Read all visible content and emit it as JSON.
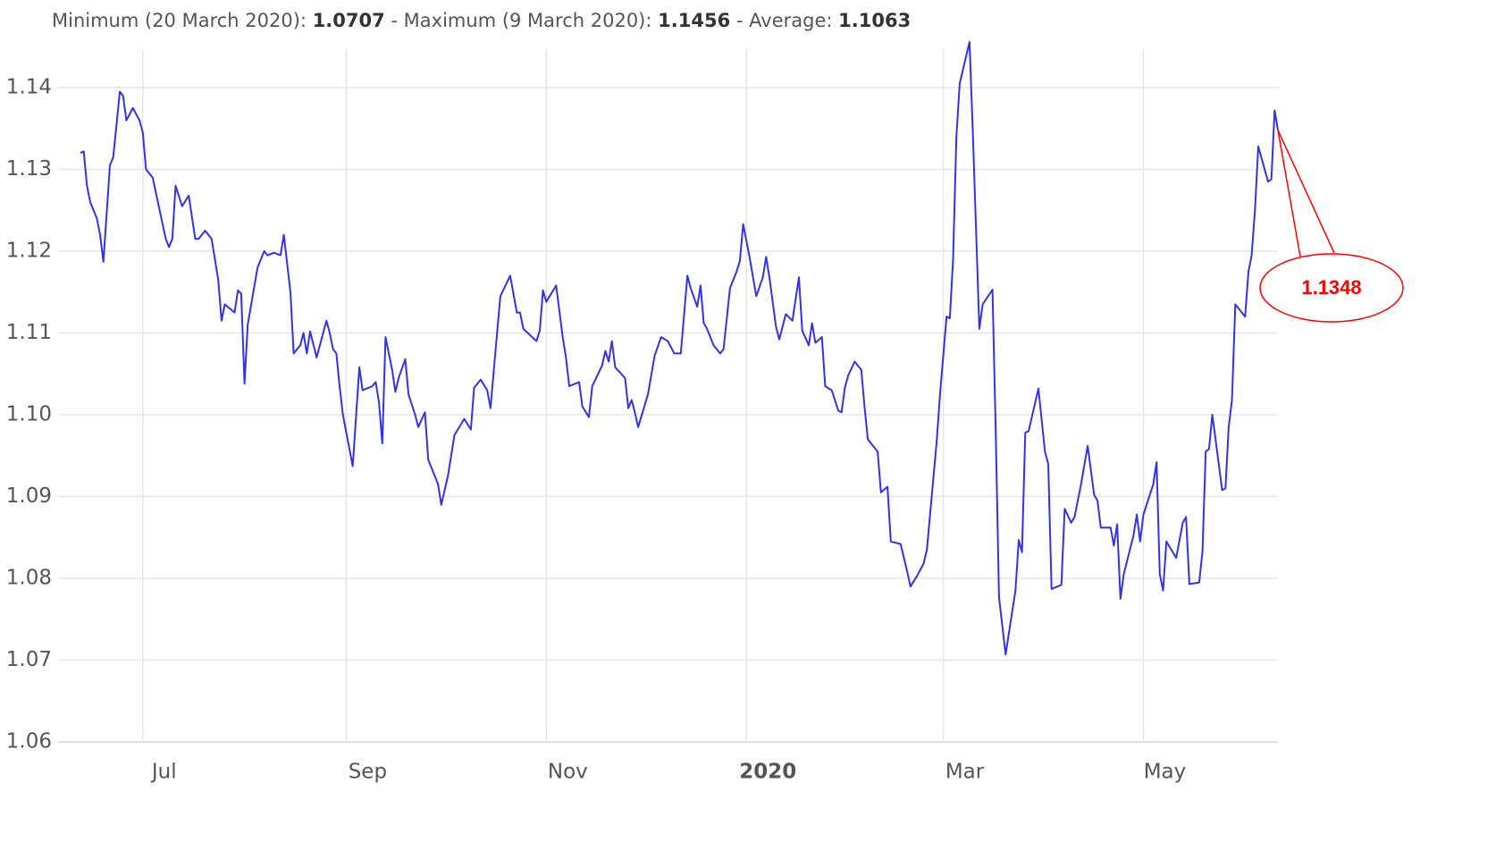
{
  "chart_data": {
    "type": "line",
    "summary": {
      "minimum_label": "Minimum (20 March 2020):",
      "minimum": 1.0707,
      "maximum_label": "- Maximum (9 March 2020):",
      "maximum": 1.1456,
      "average_label": "- Average:",
      "average": 1.1063
    },
    "annotation": {
      "value": 1.1348,
      "color": "#ff0000"
    },
    "x": [
      "2019-06-12",
      "2019-06-13",
      "2019-06-14",
      "2019-06-15",
      "2019-06-17",
      "2019-06-18",
      "2019-06-19",
      "2019-06-21",
      "2019-06-22",
      "2019-06-24",
      "2019-06-25",
      "2019-06-26",
      "2019-06-28",
      "2019-06-30",
      "2019-07-01",
      "2019-07-02",
      "2019-07-04",
      "2019-07-08",
      "2019-07-09",
      "2019-07-10",
      "2019-07-11",
      "2019-07-13",
      "2019-07-15",
      "2019-07-17",
      "2019-07-18",
      "2019-07-20",
      "2019-07-22",
      "2019-07-24",
      "2019-07-25",
      "2019-07-26",
      "2019-07-29",
      "2019-07-30",
      "2019-07-31",
      "2019-08-01",
      "2019-08-02",
      "2019-08-05",
      "2019-08-07",
      "2019-08-08",
      "2019-08-10",
      "2019-08-12",
      "2019-08-13",
      "2019-08-15",
      "2019-08-16",
      "2019-08-18",
      "2019-08-19",
      "2019-08-20",
      "2019-08-21",
      "2019-08-23",
      "2019-08-26",
      "2019-08-27",
      "2019-08-28",
      "2019-08-29",
      "2019-08-30",
      "2019-08-31",
      "2019-09-03",
      "2019-09-05",
      "2019-09-06",
      "2019-09-09",
      "2019-09-10",
      "2019-09-11",
      "2019-09-12",
      "2019-09-13",
      "2019-09-15",
      "2019-09-16",
      "2019-09-17",
      "2019-09-19",
      "2019-09-20",
      "2019-09-22",
      "2019-09-23",
      "2019-09-25",
      "2019-09-26",
      "2019-09-29",
      "2019-09-30",
      "2019-10-02",
      "2019-10-04",
      "2019-10-07",
      "2019-10-09",
      "2019-10-10",
      "2019-10-12",
      "2019-10-14",
      "2019-10-15",
      "2019-10-16",
      "2019-10-18",
      "2019-10-21",
      "2019-10-23",
      "2019-10-24",
      "2019-10-25",
      "2019-10-29",
      "2019-10-30",
      "2019-10-31",
      "2019-11-01",
      "2019-11-04",
      "2019-11-06",
      "2019-11-07",
      "2019-11-08",
      "2019-11-11",
      "2019-11-12",
      "2019-11-14",
      "2019-11-15",
      "2019-11-18",
      "2019-11-19",
      "2019-11-20",
      "2019-11-21",
      "2019-11-22",
      "2019-11-25",
      "2019-11-26",
      "2019-11-27",
      "2019-11-28",
      "2019-11-29",
      "2019-12-02",
      "2019-12-04",
      "2019-12-06",
      "2019-12-08",
      "2019-12-10",
      "2019-12-12",
      "2019-12-14",
      "2019-12-15",
      "2019-12-17",
      "2019-12-18",
      "2019-12-19",
      "2019-12-20",
      "2019-12-22",
      "2019-12-24",
      "2019-12-25",
      "2019-12-27",
      "2019-12-29",
      "2019-12-30",
      "2019-12-31",
      "2020-01-02",
      "2020-01-04",
      "2020-01-06",
      "2020-01-07",
      "2020-01-08",
      "2020-01-10",
      "2020-01-11",
      "2020-01-13",
      "2020-01-15",
      "2020-01-17",
      "2020-01-18",
      "2020-01-20",
      "2020-01-21",
      "2020-01-22",
      "2020-01-24",
      "2020-01-25",
      "2020-01-27",
      "2020-01-29",
      "2020-01-30",
      "2020-01-31",
      "2020-02-01",
      "2020-02-03",
      "2020-02-05",
      "2020-02-06",
      "2020-02-07",
      "2020-02-10",
      "2020-02-11",
      "2020-02-13",
      "2020-02-14",
      "2020-02-17",
      "2020-02-19",
      "2020-02-20",
      "2020-02-22",
      "2020-02-24",
      "2020-02-25",
      "2020-02-28",
      "2020-02-29",
      "2020-03-02",
      "2020-03-03",
      "2020-03-04",
      "2020-03-05",
      "2020-03-06",
      "2020-03-09",
      "2020-03-10",
      "2020-03-12",
      "2020-03-13",
      "2020-03-16",
      "2020-03-17",
      "2020-03-18",
      "2020-03-20",
      "2020-03-23",
      "2020-03-24",
      "2020-03-25",
      "2020-03-26",
      "2020-03-27",
      "2020-03-30",
      "2020-04-01",
      "2020-04-02",
      "2020-04-03",
      "2020-04-06",
      "2020-04-07",
      "2020-04-09",
      "2020-04-10",
      "2020-04-12",
      "2020-04-14",
      "2020-04-16",
      "2020-04-17",
      "2020-04-18",
      "2020-04-21",
      "2020-04-22",
      "2020-04-23",
      "2020-04-24",
      "2020-04-25",
      "2020-04-28",
      "2020-04-29",
      "2020-04-30",
      "2020-05-01",
      "2020-05-04",
      "2020-05-05",
      "2020-05-06",
      "2020-05-07",
      "2020-05-08",
      "2020-05-11",
      "2020-05-13",
      "2020-05-14",
      "2020-05-15",
      "2020-05-18",
      "2020-05-19",
      "2020-05-20",
      "2020-05-21",
      "2020-05-22",
      "2020-05-25",
      "2020-05-26",
      "2020-05-27",
      "2020-05-28",
      "2020-05-29",
      "2020-06-01",
      "2020-06-02",
      "2020-06-03",
      "2020-06-04",
      "2020-06-05",
      "2020-06-08",
      "2020-06-09",
      "2020-06-10",
      "2020-06-11"
    ],
    "series": [
      {
        "name": "EUR/USD",
        "color": "#3333e6",
        "values": [
          1.132,
          1.1322,
          1.128,
          1.126,
          1.124,
          1.122,
          1.1187,
          1.1305,
          1.1315,
          1.1395,
          1.139,
          1.136,
          1.1375,
          1.136,
          1.1345,
          1.13,
          1.129,
          1.1215,
          1.1205,
          1.1215,
          1.128,
          1.1255,
          1.1268,
          1.1215,
          1.1215,
          1.1225,
          1.1215,
          1.1165,
          1.1115,
          1.1135,
          1.1125,
          1.1152,
          1.1148,
          1.1038,
          1.111,
          1.118,
          1.12,
          1.1195,
          1.1198,
          1.1195,
          1.122,
          1.115,
          1.1075,
          1.1085,
          1.11,
          1.1075,
          1.1102,
          1.107,
          1.1115,
          1.11,
          1.108,
          1.1075,
          1.1035,
          1.1,
          1.0937,
          1.1058,
          1.103,
          1.1035,
          1.104,
          1.1015,
          1.0965,
          1.1095,
          1.1055,
          1.1028,
          1.1045,
          1.1068,
          1.1025,
          1.1,
          1.0985,
          1.1003,
          1.0945,
          1.0915,
          1.089,
          1.0925,
          1.0975,
          1.0995,
          1.0982,
          1.1033,
          1.1043,
          1.103,
          1.1008,
          1.1055,
          1.1145,
          1.117,
          1.1125,
          1.1125,
          1.1105,
          1.109,
          1.1103,
          1.1152,
          1.1138,
          1.1158,
          1.1095,
          1.107,
          1.1035,
          1.104,
          1.101,
          1.0997,
          1.1035,
          1.106,
          1.1078,
          1.1065,
          1.109,
          1.1058,
          1.1045,
          1.1008,
          1.1018,
          1.1003,
          1.0985,
          1.1025,
          1.1072,
          1.1095,
          1.109,
          1.1075,
          1.1075,
          1.117,
          1.1155,
          1.1132,
          1.1158,
          1.1112,
          1.1105,
          1.1085,
          1.1075,
          1.108,
          1.1155,
          1.1175,
          1.1188,
          1.1233,
          1.1192,
          1.1145,
          1.1168,
          1.1193,
          1.1168,
          1.1108,
          1.1092,
          1.1123,
          1.1115,
          1.1168,
          1.1103,
          1.1085,
          1.1112,
          1.1088,
          1.1095,
          1.1035,
          1.103,
          1.1005,
          1.1003,
          1.1033,
          1.1048,
          1.1065,
          1.1055,
          1.101,
          1.097,
          1.0955,
          1.0905,
          1.0912,
          1.0845,
          1.0842,
          1.0808,
          1.079,
          1.0803,
          1.0818,
          1.0835,
          1.0968,
          1.1025,
          1.112,
          1.1118,
          1.119,
          1.134,
          1.1405,
          1.1456,
          1.1345,
          1.1105,
          1.1135,
          1.1153,
          1.0975,
          1.0777,
          1.0707,
          1.0785,
          1.0847,
          1.0832,
          1.0978,
          1.098,
          1.1032,
          1.0955,
          1.094,
          1.0787,
          1.0792,
          1.0885,
          1.0868,
          1.0875,
          1.0915,
          1.0962,
          1.0902,
          1.0895,
          1.0862,
          1.0862,
          1.084,
          1.0866,
          1.0775,
          1.0805,
          1.0853,
          1.0878,
          1.0845,
          1.0878,
          1.0915,
          1.0942,
          1.0805,
          1.0785,
          1.0845,
          1.0825,
          1.0868,
          1.0875,
          1.0793,
          1.0795,
          1.0833,
          1.0955,
          1.0958,
          1.1,
          1.0908,
          1.091,
          1.0985,
          1.1018,
          1.1135,
          1.112,
          1.1175,
          1.1195,
          1.125,
          1.1328,
          1.1285,
          1.1288,
          1.1372,
          1.1348
        ]
      }
    ],
    "xlim": [
      "2019-06-12",
      "2020-06-11"
    ],
    "xticks": [
      {
        "value": "2019-07-01",
        "label": "Jul"
      },
      {
        "value": "2019-09-01",
        "label": "Sep"
      },
      {
        "value": "2019-11-01",
        "label": "Nov"
      },
      {
        "value": "2020-01-01",
        "label": "2020"
      },
      {
        "value": "2020-03-01",
        "label": "Mar"
      },
      {
        "value": "2020-05-01",
        "label": "May"
      }
    ],
    "ylim": [
      1.06,
      1.15
    ],
    "yticks": [
      1.06,
      1.07,
      1.08,
      1.09,
      {
        "value": 1.1,
        "label": "1.10"
      },
      1.11,
      1.12,
      1.13,
      1.14
    ],
    "grid": true
  }
}
